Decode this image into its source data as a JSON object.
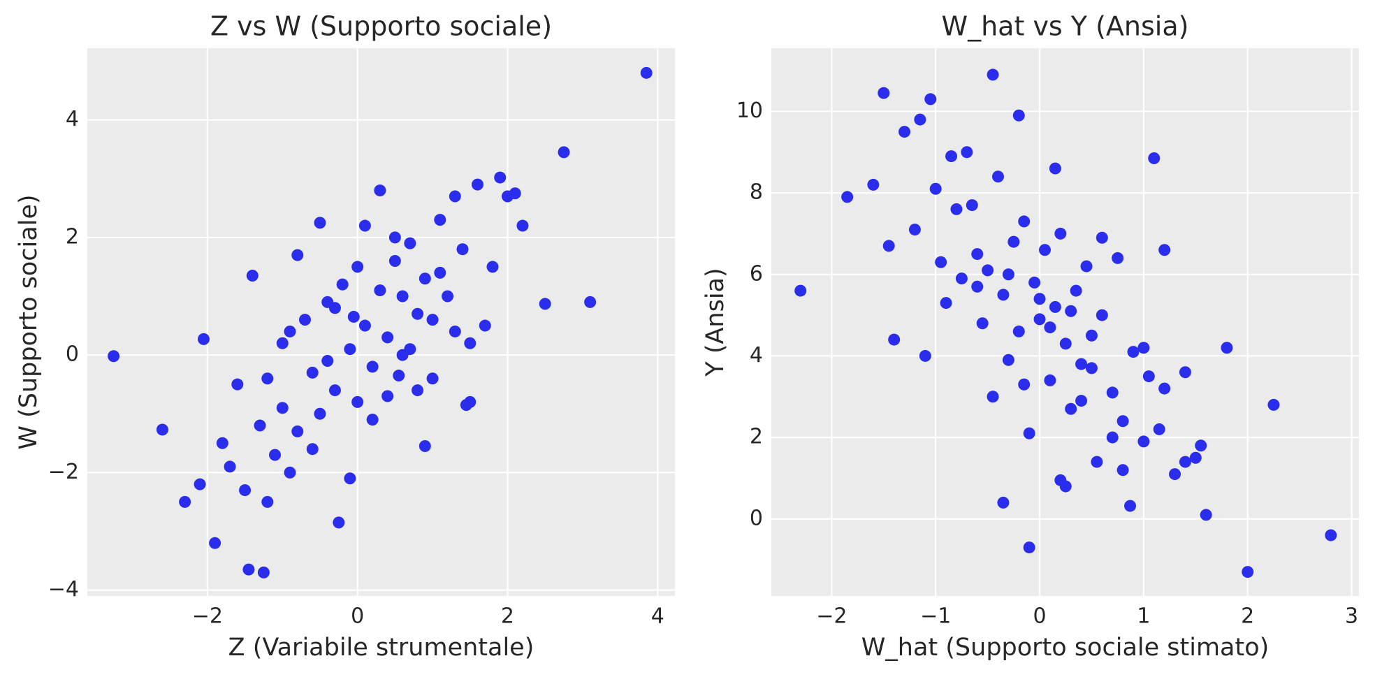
{
  "chart_data": [
    {
      "type": "scatter",
      "title": "Z vs W (Supporto sociale)",
      "x_label": "Z (Variabile strumentale)",
      "y_label": "W (Supporto sociale)",
      "color": "#2a2eec",
      "grid": true,
      "xlim": [
        -3.6,
        4.23
      ],
      "ylim": [
        -4.1,
        5.22
      ],
      "xticks": [
        {
          "value": -2,
          "label": "−2"
        },
        0,
        2,
        4
      ],
      "yticks": [
        {
          "value": -4,
          "label": "−4"
        },
        {
          "value": -2,
          "label": "−2"
        },
        0,
        2,
        4
      ],
      "x": [
        -3.25,
        -2.6,
        -2.3,
        -1.9,
        -1.45,
        -1.25,
        -0.25,
        2.5,
        3.1,
        3.85,
        2.75,
        1.9,
        2.2,
        -2.05,
        -1.4,
        0.3,
        -0.5,
        -2.1,
        -1.8,
        -1.6,
        -1.5,
        -1.3,
        -1.2,
        -1.1,
        -1.0,
        -0.9,
        -0.8,
        -0.7,
        -0.6,
        -0.5,
        -0.4,
        -0.3,
        -0.2,
        -0.1,
        0.0,
        0.1,
        0.2,
        0.3,
        0.4,
        0.5,
        0.6,
        0.7,
        0.8,
        0.9,
        1.0,
        1.1,
        1.2,
        1.3,
        1.4,
        1.5,
        1.6,
        1.8,
        2.0,
        2.1,
        -1.7,
        -1.0,
        -0.8,
        -0.6,
        -0.3,
        0.0,
        0.2,
        0.5,
        0.8,
        1.0,
        1.3,
        1.5,
        -0.9,
        -0.4,
        0.1,
        0.4,
        0.7,
        1.1,
        1.7,
        -1.2,
        0.6,
        0.9,
        -0.1,
        1.45,
        0.55,
        -0.05
      ],
      "y": [
        -0.02,
        -1.27,
        -2.5,
        -3.2,
        -3.65,
        -3.7,
        -2.85,
        0.87,
        0.9,
        4.8,
        3.45,
        3.02,
        2.2,
        0.27,
        1.35,
        2.8,
        2.25,
        -2.2,
        -1.5,
        -0.5,
        -2.3,
        -1.2,
        -0.4,
        -1.7,
        -0.9,
        0.4,
        -1.3,
        0.6,
        -0.3,
        -1.0,
        0.9,
        -0.6,
        1.2,
        0.1,
        -0.8,
        0.5,
        -0.2,
        1.1,
        0.3,
        1.6,
        0.0,
        1.9,
        0.7,
        1.3,
        -0.4,
        2.3,
        1.0,
        0.4,
        1.8,
        -0.8,
        2.9,
        1.5,
        2.7,
        2.75,
        -1.9,
        0.2,
        1.7,
        -1.6,
        0.8,
        1.5,
        -1.1,
        2.0,
        -0.6,
        0.6,
        2.7,
        0.2,
        -2.0,
        -0.1,
        2.2,
        -0.7,
        0.1,
        1.4,
        0.5,
        -2.5,
        1.0,
        -1.55,
        -2.1,
        -0.85,
        -0.35,
        0.65
      ]
    },
    {
      "type": "scatter",
      "title": "W_hat vs Y (Ansia)",
      "x_label": "W_hat (Supporto sociale stimato)",
      "y_label": "Y (Ansia)",
      "color": "#2a2eec",
      "grid": true,
      "xlim": [
        -2.58,
        3.07
      ],
      "ylim": [
        -1.89,
        11.55
      ],
      "xticks": [
        {
          "value": -2,
          "label": "−2"
        },
        {
          "value": -1,
          "label": "−1"
        },
        0,
        1,
        2,
        3
      ],
      "yticks": [
        0,
        2,
        4,
        6,
        8,
        10
      ],
      "x": [
        -2.3,
        -1.85,
        -1.6,
        -1.5,
        -0.45,
        -1.05,
        1.1,
        2.25,
        2.8,
        2.0,
        -0.1,
        1.8,
        1.6,
        -0.35,
        0.87,
        -1.45,
        -1.3,
        -1.2,
        -1.1,
        -1.0,
        -0.95,
        -0.9,
        -0.8,
        -0.75,
        -0.7,
        -0.6,
        -0.55,
        -0.5,
        -0.4,
        -0.35,
        -0.3,
        -0.25,
        -0.2,
        -0.15,
        -0.1,
        -0.05,
        0.0,
        0.05,
        0.1,
        0.15,
        0.2,
        0.25,
        0.3,
        0.35,
        0.4,
        0.45,
        0.5,
        0.55,
        0.6,
        0.7,
        0.75,
        0.8,
        0.9,
        1.0,
        1.05,
        1.15,
        1.2,
        1.3,
        1.4,
        1.5,
        -1.4,
        -1.15,
        -0.85,
        -0.65,
        -0.45,
        -0.2,
        0.0,
        0.2,
        0.4,
        0.6,
        0.8,
        1.0,
        1.2,
        1.4,
        -0.3,
        0.1,
        0.3,
        0.5,
        0.7,
        -0.6,
        0.15,
        0.25,
        -0.15,
        1.55
      ],
      "y": [
        5.6,
        7.9,
        8.2,
        10.45,
        10.9,
        10.3,
        8.85,
        2.8,
        -0.4,
        -1.3,
        -0.7,
        4.2,
        0.1,
        0.4,
        0.32,
        6.7,
        9.5,
        7.1,
        4.0,
        8.1,
        6.3,
        5.3,
        7.6,
        5.9,
        9.0,
        6.5,
        4.8,
        6.1,
        8.4,
        5.5,
        3.9,
        6.8,
        4.6,
        7.3,
        2.1,
        5.8,
        4.9,
        6.6,
        3.4,
        5.2,
        7.0,
        4.3,
        2.7,
        5.6,
        3.8,
        6.2,
        4.5,
        1.4,
        5.0,
        3.1,
        6.4,
        2.4,
        4.1,
        1.9,
        3.5,
        2.2,
        6.6,
        1.1,
        3.6,
        1.5,
        4.4,
        9.8,
        8.9,
        7.7,
        3.0,
        9.9,
        5.4,
        0.95,
        2.9,
        6.9,
        1.2,
        4.2,
        3.2,
        1.4,
        6.0,
        4.7,
        5.1,
        3.7,
        2.0,
        5.7,
        8.6,
        0.8,
        3.3,
        1.8
      ]
    }
  ]
}
